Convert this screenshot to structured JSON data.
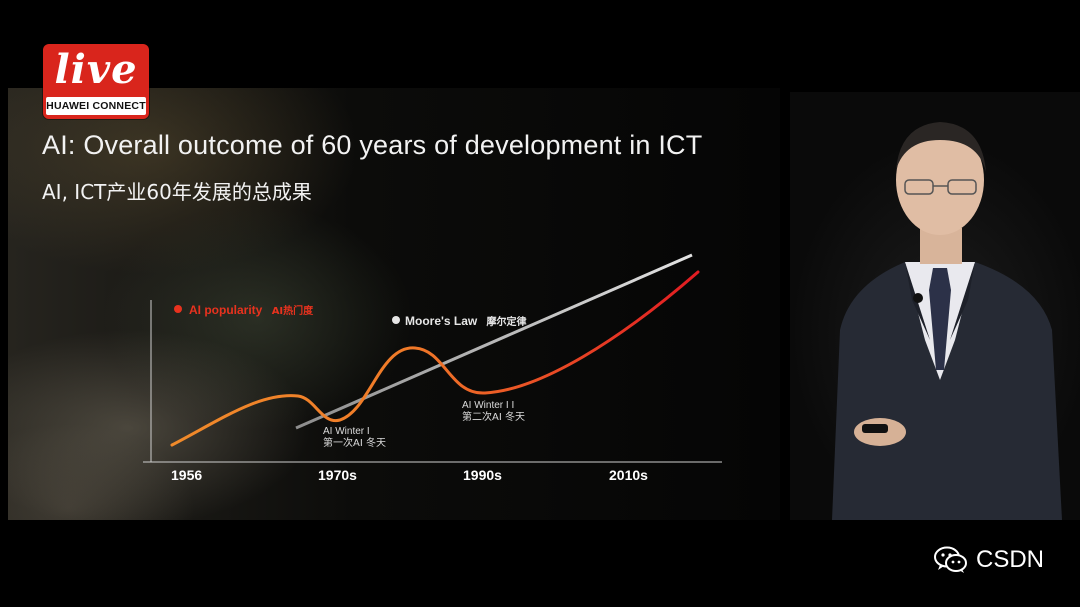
{
  "badge": {
    "logo_word": "live",
    "logo_text": "HUAWEI CONNECT"
  },
  "slide": {
    "title_en": "AI: Overall outcome of 60 years of development in ICT",
    "title_zh": "AI, ICT产业60年发展的总成果",
    "legend_ai_en": "AI popularity",
    "legend_ai_zh": "AI热门度",
    "legend_moore_en": "Moore's Law",
    "legend_moore_zh": "摩尔定律",
    "winter1_en": "AI Winter I",
    "winter1_zh": "第一次AI 冬天",
    "winter2_en": "AI Winter I I",
    "winter2_zh": "第二次AI 冬天",
    "ticks": [
      "1956",
      "1970s",
      "1990s",
      "2010s"
    ]
  },
  "colors": {
    "ai_start": "#f08a2a",
    "ai_end": "#e21b22",
    "moore": "#d8d8d8",
    "badge": "#d9251c"
  },
  "watermark": {
    "icon": "wechat-icon",
    "text": "CSDN"
  }
}
